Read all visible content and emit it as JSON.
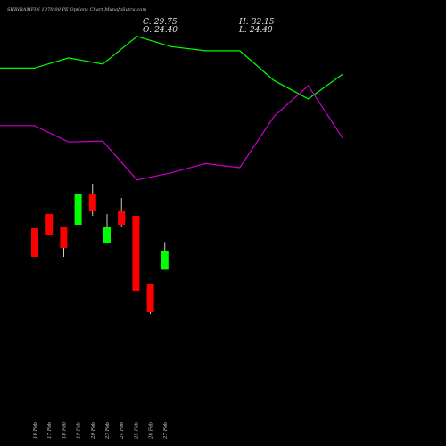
{
  "header": {
    "title": "SHRIRAMFIN 1070.00 PE Options Chart MunafaSutra.com",
    "close": "C: 29.75",
    "open": "O: 24.40",
    "high": "H: 32.15",
    "low": "L: 24.40"
  },
  "chart_data": {
    "type": "candlestick",
    "categories": [
      "16 Feb",
      "17 Feb",
      "18 Feb",
      "19 Feb",
      "20 Feb",
      "23 Feb",
      "24 Feb",
      "25 Feb",
      "26 Feb",
      "27 Feb"
    ],
    "candles": [
      {
        "open": 36.0,
        "high": 36.0,
        "low": 28.0,
        "close": 28.0,
        "color": "red"
      },
      {
        "open": 40.0,
        "high": 40.0,
        "low": 34.0,
        "close": 34.0,
        "color": "red"
      },
      {
        "open": 36.5,
        "high": 36.5,
        "low": 28.0,
        "close": 30.5,
        "color": "red"
      },
      {
        "open": 37.0,
        "high": 47.0,
        "low": 34.0,
        "close": 45.5,
        "color": "green"
      },
      {
        "open": 45.5,
        "high": 48.5,
        "low": 39.5,
        "close": 41.0,
        "color": "red"
      },
      {
        "open": 32.0,
        "high": 40.0,
        "low": 32.0,
        "close": 36.5,
        "color": "green"
      },
      {
        "open": 41.0,
        "high": 44.5,
        "low": 36.5,
        "close": 37.0,
        "color": "red"
      },
      {
        "open": 39.5,
        "high": 39.5,
        "low": 17.5,
        "close": 18.5,
        "color": "red"
      },
      {
        "open": 20.5,
        "high": 20.5,
        "low": 12.0,
        "close": 12.5,
        "color": "red"
      },
      {
        "open": 24.4,
        "high": 32.15,
        "low": 24.4,
        "close": 29.75,
        "color": "green"
      }
    ],
    "upper_line": {
      "color": "#00ff00",
      "values": [
        162.0,
        162.0,
        167.0,
        164.0,
        177.5,
        172.5,
        170.5,
        170.5,
        156.0,
        147.0,
        159.0
      ]
    },
    "lower_line": {
      "color": "#cc00cc",
      "values": [
        134.0,
        134.0,
        126.0,
        126.5,
        107.5,
        111.0,
        115.5,
        113.5,
        138.5,
        153.5,
        128.0
      ]
    },
    "line_x": [
      0,
      1,
      2,
      3,
      4,
      5,
      6,
      7,
      8,
      9,
      10
    ],
    "colors": {
      "up": "#00ff00",
      "down": "#ff0000",
      "background": "#000000",
      "text": "#cccccc"
    }
  }
}
